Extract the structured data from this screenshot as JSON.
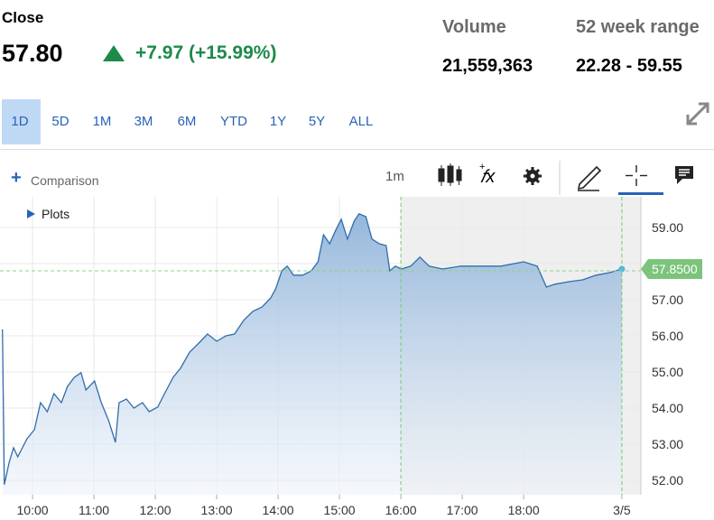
{
  "header": {
    "title": "Close",
    "price": "57.80",
    "change": "+7.97 (+15.99%)",
    "stats": [
      {
        "label": "Volume",
        "value": "21,559,363"
      },
      {
        "label": "52 week range",
        "value": "22.28 - 59.55"
      }
    ]
  },
  "tabs": [
    "1D",
    "5D",
    "1M",
    "3M",
    "6M",
    "YTD",
    "1Y",
    "5Y",
    "ALL"
  ],
  "toolbar": {
    "comparison": "Comparison",
    "interval": "1m",
    "plots": "Plots"
  },
  "chart_data": {
    "type": "line",
    "x": [
      9.51,
      9.54,
      9.62,
      9.69,
      9.76,
      9.91,
      10.03,
      10.13,
      10.24,
      10.35,
      10.47,
      10.57,
      10.68,
      10.79,
      10.87,
      11.01,
      11.12,
      11.24,
      11.35,
      11.41,
      11.53,
      11.65,
      11.79,
      11.9,
      12.04,
      12.15,
      12.29,
      12.41,
      12.56,
      12.71,
      12.85,
      13.0,
      13.15,
      13.29,
      13.44,
      13.59,
      13.74,
      13.88,
      13.96,
      14.06,
      14.15,
      14.25,
      14.4,
      14.54,
      14.65,
      14.74,
      14.84,
      14.94,
      15.03,
      15.13,
      15.24,
      15.32,
      15.43,
      15.53,
      15.65,
      15.76,
      15.82,
      15.91,
      16.01,
      16.16,
      16.31,
      16.46,
      16.68,
      16.97,
      17.26,
      17.63,
      18.0,
      18.22,
      18.37,
      18.51,
      18.74,
      18.96,
      19.18,
      19.4,
      19.6
    ],
    "series": [
      {
        "name": "Close",
        "color": "#2f6eaa",
        "values": [
          56.18,
          51.88,
          52.5,
          52.9,
          52.65,
          53.15,
          53.4,
          54.15,
          53.9,
          54.4,
          54.15,
          54.6,
          54.85,
          54.98,
          54.5,
          54.75,
          54.15,
          53.65,
          53.05,
          54.15,
          54.25,
          54.0,
          54.15,
          53.9,
          54.03,
          54.4,
          54.85,
          55.1,
          55.55,
          55.8,
          56.05,
          55.85,
          56.0,
          56.05,
          56.43,
          56.68,
          56.8,
          57.05,
          57.3,
          57.8,
          57.93,
          57.68,
          57.68,
          57.8,
          58.05,
          58.8,
          58.55,
          58.93,
          59.23,
          58.68,
          59.18,
          59.38,
          59.3,
          58.68,
          58.55,
          58.5,
          57.8,
          57.93,
          57.85,
          57.93,
          58.18,
          57.93,
          57.85,
          57.93,
          57.93,
          57.93,
          58.05,
          57.93,
          57.35,
          57.43,
          57.5,
          57.55,
          57.68,
          57.75,
          57.85
        ]
      }
    ],
    "last_price_tag": "57.8500",
    "reference_line": 57.8,
    "shaded_from": 16,
    "xlim": [
      9.47,
      19.91
    ],
    "xticks": [
      {
        "value": 10,
        "label": "10:00"
      },
      {
        "value": 11,
        "label": "11:00"
      },
      {
        "value": 12,
        "label": "12:00"
      },
      {
        "value": 13,
        "label": "13:00"
      },
      {
        "value": 14,
        "label": "14:00"
      },
      {
        "value": 15,
        "label": "15:00"
      },
      {
        "value": 16,
        "label": "16:00"
      },
      {
        "value": 17,
        "label": "17:00"
      },
      {
        "value": 18,
        "label": "18:00"
      },
      {
        "value": 19.6,
        "label": "3/5"
      }
    ],
    "ylim": [
      51.6,
      59.85
    ],
    "yticks": [
      {
        "value": 52,
        "label": "52.00"
      },
      {
        "value": 53,
        "label": "53.00"
      },
      {
        "value": 54,
        "label": "54.00"
      },
      {
        "value": 55,
        "label": "55.00"
      },
      {
        "value": 56,
        "label": "56.00"
      },
      {
        "value": 57,
        "label": "57.00"
      },
      {
        "value": 58,
        "label": "58.00"
      },
      {
        "value": 59,
        "label": "59.00"
      }
    ],
    "grid": true
  }
}
